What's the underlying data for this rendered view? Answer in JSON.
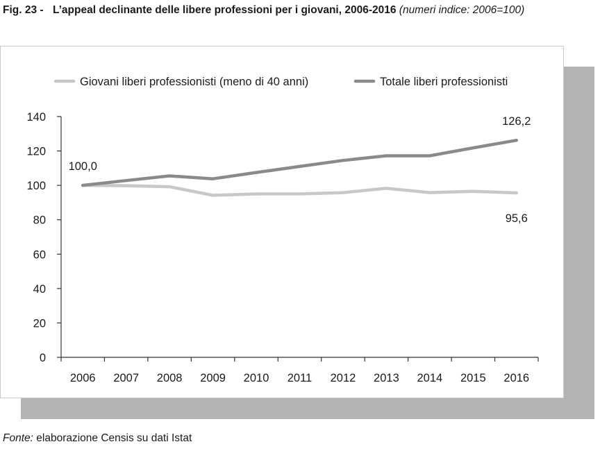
{
  "figure": {
    "prefix": "Fig. 23 -",
    "title": "L’appeal declinante delle libere professioni per i giovani, 2006-2016",
    "subtitle": "(numeri indice: 2006=100)"
  },
  "source": {
    "label": "Fonte:",
    "text": "elaborazione Censis su dati Istat"
  },
  "chart_data": {
    "type": "line",
    "title": "",
    "xlabel": "",
    "ylabel": "",
    "categories": [
      "2006",
      "2007",
      "2008",
      "2009",
      "2010",
      "2011",
      "2012",
      "2013",
      "2014",
      "2015",
      "2016"
    ],
    "ylim": [
      0,
      140
    ],
    "yticks": [
      0,
      20,
      40,
      60,
      80,
      100,
      120,
      140
    ],
    "grid": false,
    "legend_position": "top",
    "series": [
      {
        "name": "Giovani liberi professionisti (meno di 40 anni)",
        "color": "#c8c8c8",
        "values": [
          100.0,
          99.8,
          99.2,
          94.2,
          95.0,
          95.0,
          95.8,
          98.3,
          95.8,
          96.5,
          95.6
        ]
      },
      {
        "name": "Totale liberi professionisti",
        "color": "#8a8a8a",
        "values": [
          100.0,
          102.8,
          105.5,
          103.8,
          107.5,
          111.0,
          114.5,
          117.2,
          117.2,
          121.8,
          126.2
        ]
      }
    ],
    "annotations": [
      {
        "series": 1,
        "index": 0,
        "text": "100,0",
        "position": "above"
      },
      {
        "series": 1,
        "index": 10,
        "text": "126,2",
        "position": "above"
      },
      {
        "series": 0,
        "index": 10,
        "text": "95,6",
        "position": "below"
      }
    ]
  }
}
